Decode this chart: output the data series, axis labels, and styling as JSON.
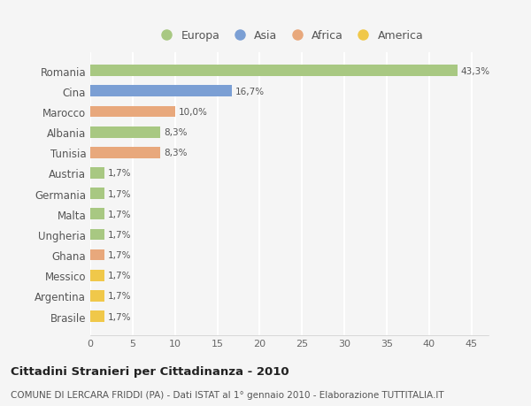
{
  "categories": [
    "Romania",
    "Cina",
    "Marocco",
    "Albania",
    "Tunisia",
    "Austria",
    "Germania",
    "Malta",
    "Ungheria",
    "Ghana",
    "Messico",
    "Argentina",
    "Brasile"
  ],
  "values": [
    43.3,
    16.7,
    10.0,
    8.3,
    8.3,
    1.7,
    1.7,
    1.7,
    1.7,
    1.7,
    1.7,
    1.7,
    1.7
  ],
  "labels": [
    "43,3%",
    "16,7%",
    "10,0%",
    "8,3%",
    "8,3%",
    "1,7%",
    "1,7%",
    "1,7%",
    "1,7%",
    "1,7%",
    "1,7%",
    "1,7%",
    "1,7%"
  ],
  "continents": [
    "Europa",
    "Asia",
    "Africa",
    "Europa",
    "Africa",
    "Europa",
    "Europa",
    "Europa",
    "Europa",
    "Africa",
    "America",
    "America",
    "America"
  ],
  "colors": {
    "Europa": "#a8c882",
    "Asia": "#7b9fd4",
    "Africa": "#e8a87c",
    "America": "#f0c84a"
  },
  "legend_order": [
    "Europa",
    "Asia",
    "Africa",
    "America"
  ],
  "title": "Cittadini Stranieri per Cittadinanza - 2010",
  "subtitle": "COMUNE DI LERCARA FRIDDI (PA) - Dati ISTAT al 1° gennaio 2010 - Elaborazione TUTTITALIA.IT",
  "xlim": [
    0,
    47
  ],
  "xticks": [
    0,
    5,
    10,
    15,
    20,
    25,
    30,
    35,
    40,
    45
  ],
  "background_color": "#f5f5f5",
  "grid_color": "#ffffff",
  "bar_height": 0.55
}
